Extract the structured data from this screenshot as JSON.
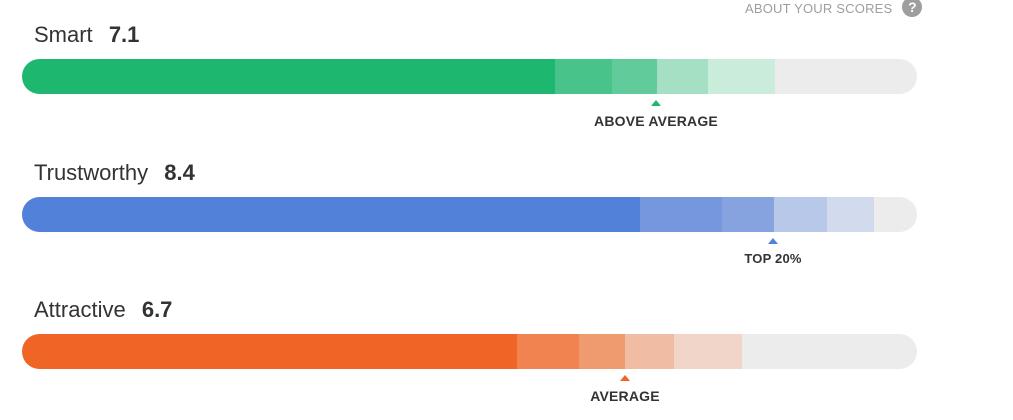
{
  "header": {
    "about_label": "ABOUT YOUR SCORES",
    "help_icon": "question-circle-icon",
    "help_glyph": "?"
  },
  "scores": [
    {
      "key": "smart",
      "label": "Smart",
      "value": "7.1",
      "marker_label": "ABOVE AVERAGE",
      "color": "#1db770",
      "segment_colors": [
        "#1db770",
        "#48c38a",
        "#62cb9b",
        "#a6e0c4",
        "#c9ecdb"
      ],
      "track_color": "#ececec"
    },
    {
      "key": "trustworthy",
      "label": "Trustworthy",
      "value": "8.4",
      "marker_label": "TOP 20%",
      "color": "#5181d8",
      "segment_colors": [
        "#5181d8",
        "#7597dd",
        "#86a2df",
        "#b8c8e8",
        "#d2dbee"
      ],
      "track_color": "#ececec"
    },
    {
      "key": "attractive",
      "label": "Attractive",
      "value": "6.7",
      "marker_label": "AVERAGE",
      "color": "#f06426",
      "segment_colors": [
        "#f06426",
        "#f0834f",
        "#f09a6f",
        "#f0bda4",
        "#f0d5c8"
      ],
      "track_color": "#ececec"
    }
  ]
}
